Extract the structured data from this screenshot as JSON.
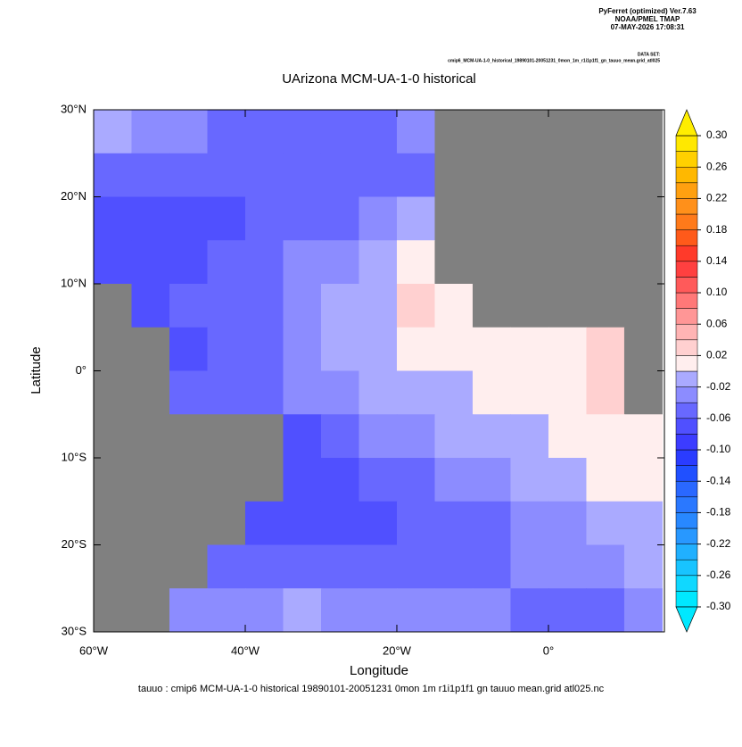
{
  "header": {
    "program": "PyFerret (optimized) Ver.7.63",
    "org": "NOAA/PMEL TMAP",
    "date": "07-MAY-2026 17:08:31",
    "dataset_label": "DATA SET:",
    "dataset": "cmip6_MCM-UA-1-0_historical_19890101-20051231_0mon_1m_r1i1p1f1_gn_tauuo_mean.grid_atl025"
  },
  "chart_data": {
    "type": "heatmap",
    "title": "UArizona MCM-UA-1-0 historical",
    "x_label": "Longitude",
    "y_label": "Latitude",
    "footer": "tauuo : cmip6 MCM-UA-1-0 historical 19890101-20051231 0mon 1m r1i1p1f1 gn tauuo mean.grid atl025.nc",
    "xlim": [
      -60,
      15.3
    ],
    "ylim": [
      -30,
      30
    ],
    "xticks": [
      {
        "value": -60,
        "label": "60°W"
      },
      {
        "value": -40,
        "label": "40°W"
      },
      {
        "value": -20,
        "label": "20°W"
      },
      {
        "value": 0,
        "label": "0°"
      }
    ],
    "yticks": [
      {
        "value": 30,
        "label": "30°N"
      },
      {
        "value": 20,
        "label": "20°N"
      },
      {
        "value": 10,
        "label": "10°N"
      },
      {
        "value": 0,
        "label": "0°"
      },
      {
        "value": -10,
        "label": "10°S"
      },
      {
        "value": -20,
        "label": "20°S"
      },
      {
        "value": -30,
        "label": "30°S"
      }
    ],
    "x": [
      -57.5,
      -52.5,
      -47.5,
      -42.5,
      -37.5,
      -32.5,
      -27.5,
      -22.5,
      -17.5,
      -12.5,
      -7.5,
      -2.5,
      2.5,
      7.5,
      12.5
    ],
    "y": [
      27.5,
      22.5,
      17.5,
      12.5,
      7.5,
      2.5,
      -2.5,
      -7.5,
      -12.5,
      -17.5,
      -22.5,
      -27.5
    ],
    "z": [
      [
        -0.01,
        -0.03,
        -0.03,
        -0.05,
        -0.05,
        -0.05,
        -0.05,
        -0.05,
        -0.03,
        null,
        null,
        null,
        null,
        null,
        null
      ],
      [
        -0.05,
        -0.05,
        -0.05,
        -0.05,
        -0.05,
        -0.05,
        -0.05,
        -0.05,
        -0.05,
        null,
        null,
        null,
        null,
        null,
        null
      ],
      [
        -0.07,
        -0.07,
        -0.07,
        -0.07,
        -0.05,
        -0.05,
        -0.05,
        -0.03,
        -0.01,
        null,
        null,
        null,
        null,
        null,
        null
      ],
      [
        -0.07,
        -0.07,
        -0.07,
        -0.05,
        -0.05,
        -0.03,
        -0.03,
        -0.01,
        0.01,
        null,
        null,
        null,
        null,
        null,
        null
      ],
      [
        null,
        -0.07,
        -0.05,
        -0.05,
        -0.05,
        -0.03,
        -0.01,
        -0.01,
        0.03,
        0.01,
        null,
        null,
        null,
        null,
        null
      ],
      [
        null,
        null,
        -0.07,
        -0.05,
        -0.05,
        -0.03,
        -0.01,
        -0.01,
        0.01,
        0.01,
        0.01,
        0.01,
        0.01,
        0.03,
        null
      ],
      [
        null,
        null,
        -0.05,
        -0.05,
        -0.05,
        -0.03,
        -0.03,
        -0.01,
        -0.01,
        -0.01,
        0.01,
        0.01,
        0.01,
        0.03,
        null
      ],
      [
        null,
        null,
        null,
        null,
        null,
        -0.07,
        -0.05,
        -0.03,
        -0.03,
        -0.01,
        -0.01,
        -0.01,
        0.01,
        0.01,
        0.01
      ],
      [
        null,
        null,
        null,
        null,
        null,
        -0.07,
        -0.07,
        -0.05,
        -0.05,
        -0.03,
        -0.03,
        -0.01,
        -0.01,
        0.01,
        0.01
      ],
      [
        null,
        null,
        null,
        null,
        -0.07,
        -0.07,
        -0.07,
        -0.07,
        -0.05,
        -0.05,
        -0.05,
        -0.03,
        -0.03,
        -0.01,
        -0.01
      ],
      [
        null,
        null,
        null,
        -0.05,
        -0.05,
        -0.05,
        -0.05,
        -0.05,
        -0.05,
        -0.05,
        -0.05,
        -0.03,
        -0.03,
        -0.03,
        -0.01
      ],
      [
        null,
        null,
        -0.03,
        -0.03,
        -0.03,
        -0.01,
        -0.03,
        -0.03,
        -0.03,
        -0.03,
        -0.03,
        -0.05,
        -0.05,
        -0.05,
        -0.03
      ]
    ],
    "missing_color": "#808080",
    "colorbar": {
      "levels": [
        -0.3,
        -0.28,
        -0.26,
        -0.24,
        -0.22,
        -0.2,
        -0.18,
        -0.16,
        -0.14,
        -0.12,
        -0.1,
        -0.08,
        -0.06,
        -0.04,
        -0.02,
        0,
        0.02,
        0.04,
        0.06,
        0.08,
        0.1,
        0.12,
        0.14,
        0.16,
        0.18,
        0.2,
        0.22,
        0.24,
        0.26,
        0.28,
        0.3
      ],
      "colors": [
        "#00e8ff",
        "#10d8ff",
        "#18c4ff",
        "#20b0ff",
        "#2898ff",
        "#2888ff",
        "#2a78ff",
        "#2a68ff",
        "#2050ff",
        "#2a3cff",
        "#3c3cff",
        "#5050ff",
        "#6868ff",
        "#8c8cff",
        "#aaaaff",
        "#ffeeee",
        "#ffd0d0",
        "#ffb4b4",
        "#ff9696",
        "#ff7878",
        "#ff5a5a",
        "#ff4040",
        "#ff3a2a",
        "#ff5a1a",
        "#ff7a1a",
        "#ff901a",
        "#ffa010",
        "#ffb800",
        "#ffd000",
        "#ffe800"
      ],
      "under_color": "#00e8ff",
      "over_color": "#ffee00",
      "ticks": [
        {
          "value": 0.3,
          "label": "0.30"
        },
        0.26,
        0.22,
        0.18,
        0.14,
        {
          "value": 0.1,
          "label": "0.10"
        },
        0.06,
        0.02,
        -0.02,
        -0.06,
        {
          "value": -0.1,
          "label": "-0.10"
        },
        -0.14,
        -0.18,
        -0.22,
        -0.26,
        {
          "value": -0.3,
          "label": "-0.30"
        }
      ]
    }
  }
}
